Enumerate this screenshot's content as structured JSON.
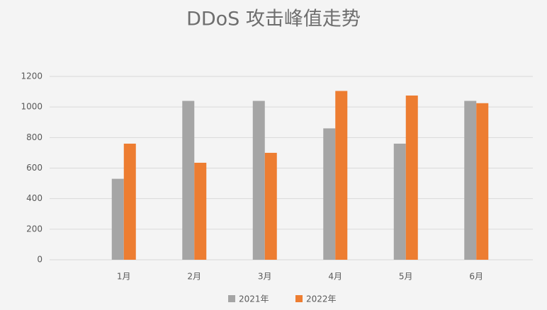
{
  "chart_data": {
    "type": "bar",
    "title": "DDoS 攻击峰值走势",
    "categories": [
      "1月",
      "2月",
      "3月",
      "4月",
      "5月",
      "6月"
    ],
    "series": [
      {
        "name": "2021年",
        "color": "#a5a5a5",
        "values": [
          530,
          1040,
          1040,
          860,
          760,
          1040
        ]
      },
      {
        "name": "2022年",
        "color": "#ed7d31",
        "values": [
          760,
          635,
          700,
          1105,
          1075,
          1025
        ]
      }
    ],
    "ylim": [
      0,
      1200
    ],
    "yticks": [
      0,
      200,
      400,
      600,
      800,
      1000,
      1200
    ],
    "grid": true
  }
}
